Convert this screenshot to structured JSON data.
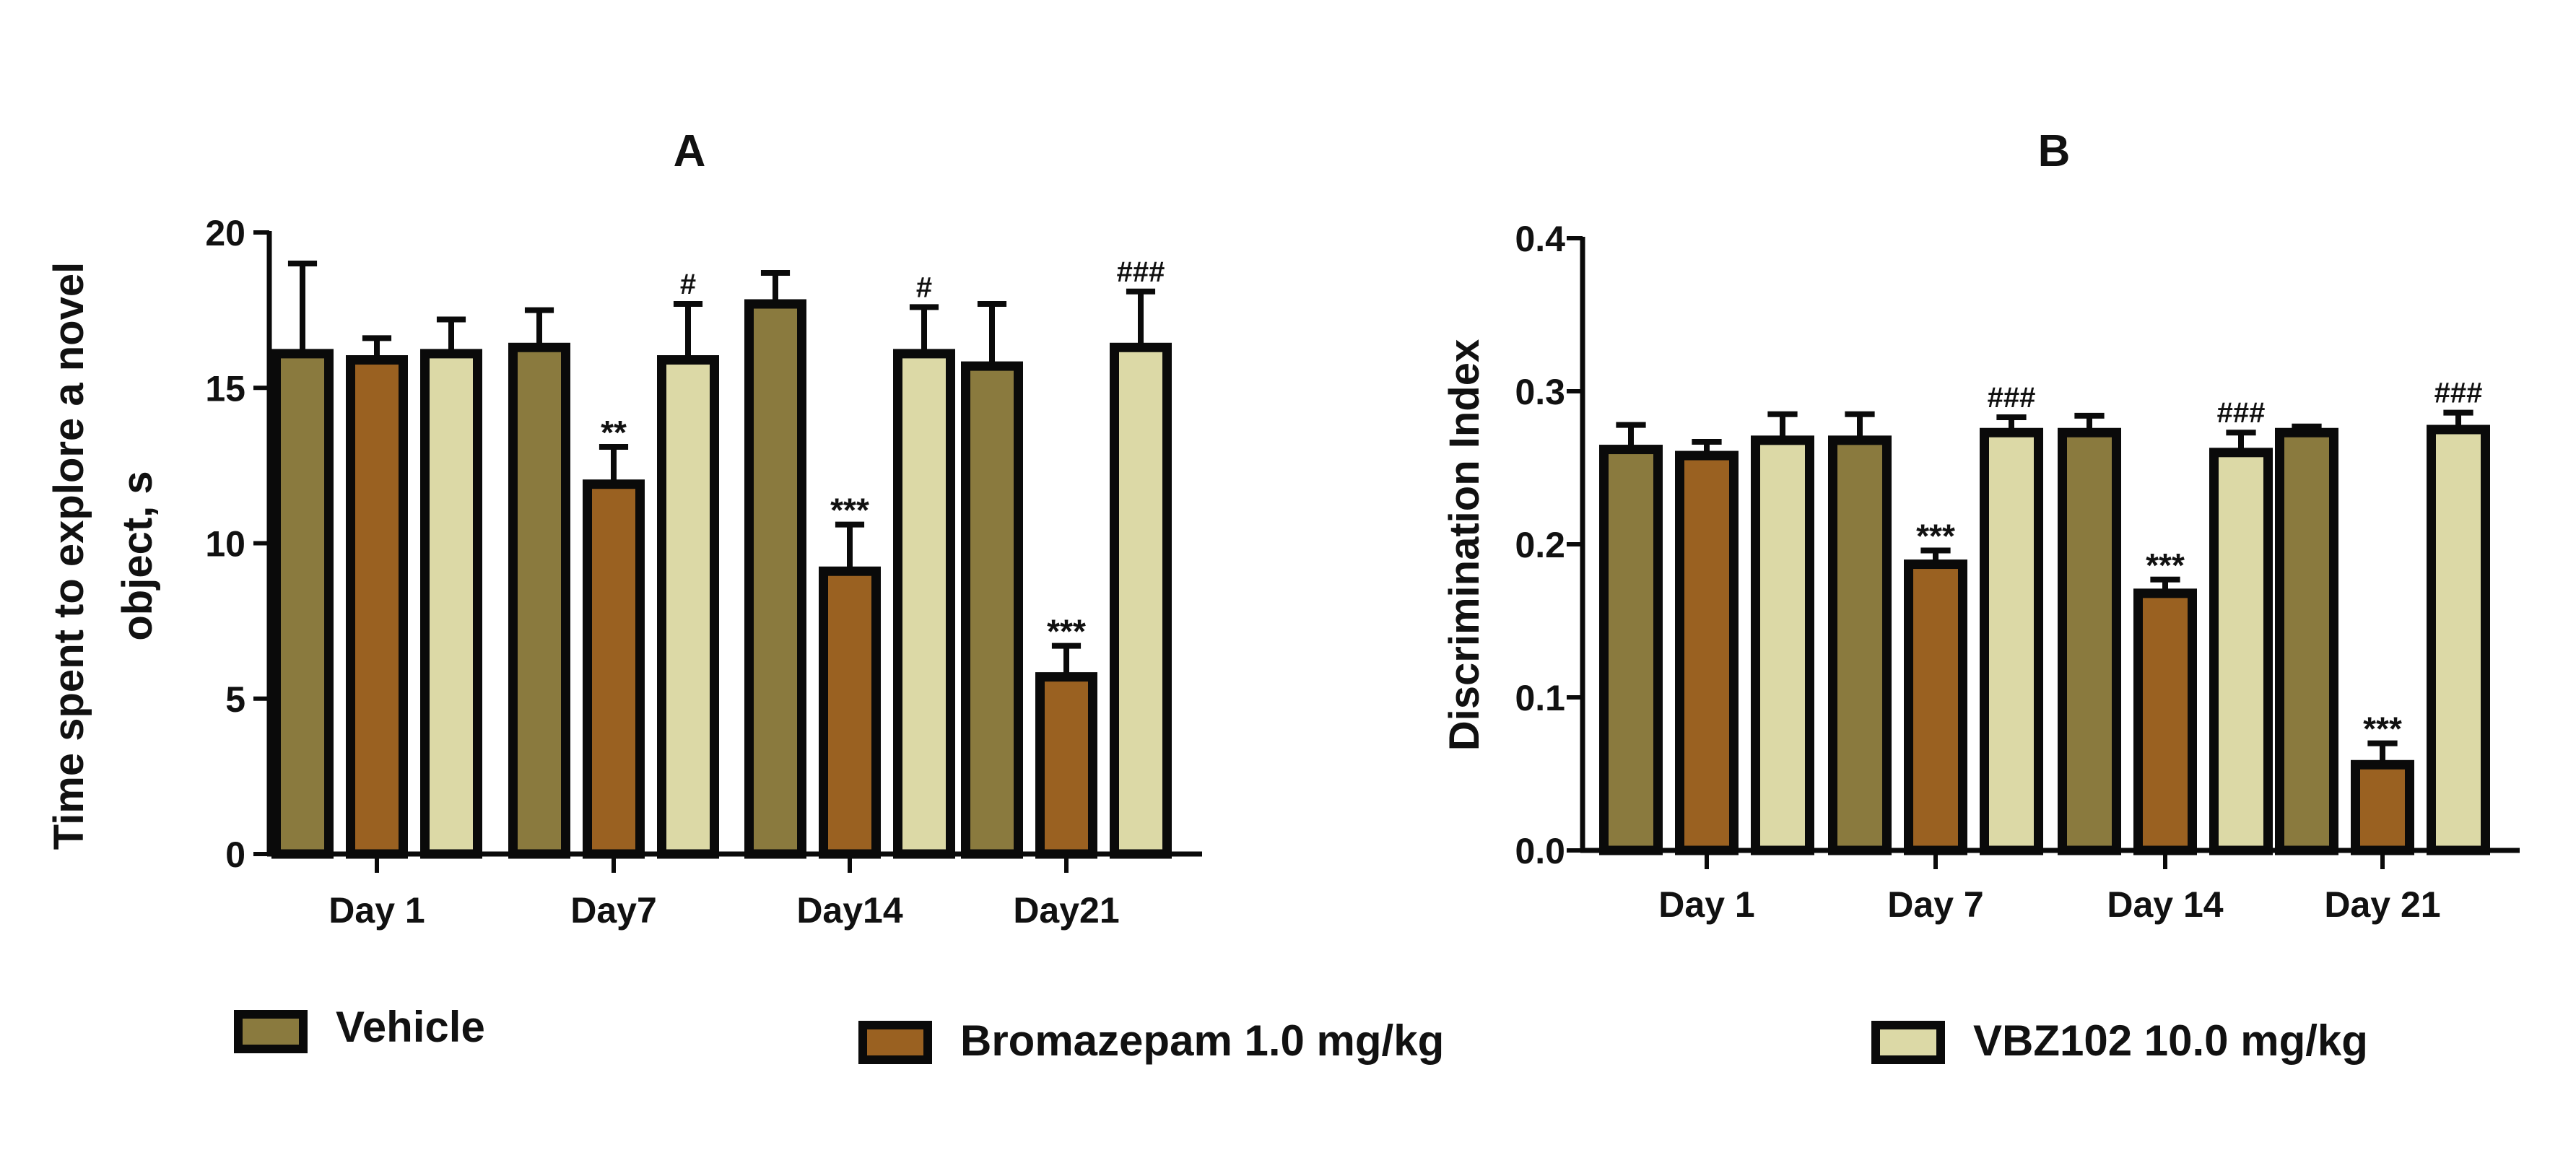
{
  "colors": {
    "vehicle": "#8a7a3e",
    "bromazepam": "#9a6121",
    "vbz102": "#dcd9a6",
    "stroke": "#0a0a0a"
  },
  "legend": [
    {
      "key": "vehicle",
      "label": "Vehicle"
    },
    {
      "key": "bromazepam",
      "label": "Bromazepam 1.0 mg/kg"
    },
    {
      "key": "vbz102",
      "label": "VBZ102 10.0 mg/kg"
    }
  ],
  "chart_data": [
    {
      "type": "bar",
      "title": "A",
      "ylabel_lines": [
        "Time spent to explore a novel",
        "object, s"
      ],
      "xlabel": "",
      "categories": [
        "Day 1",
        "Day7",
        "Day14",
        "Day21"
      ],
      "ylim": [
        0,
        20
      ],
      "yticks": [
        "0",
        "5",
        "10",
        "15",
        "20"
      ],
      "grid": false,
      "series": [
        {
          "name": "Vehicle",
          "key": "vehicle",
          "values": [
            16.1,
            16.3,
            17.7,
            15.7
          ],
          "errors": [
            2.9,
            1.2,
            1.0,
            2.0
          ],
          "annotations": [
            "",
            "",
            "",
            ""
          ]
        },
        {
          "name": "Bromazepam 1.0 mg/kg",
          "key": "bromazepam",
          "values": [
            15.9,
            11.9,
            9.1,
            5.7
          ],
          "errors": [
            0.7,
            1.2,
            1.5,
            1.0
          ],
          "annotations": [
            "",
            "**",
            "***",
            "***"
          ]
        },
        {
          "name": "VBZ102 10.0 mg/kg",
          "key": "vbz102",
          "values": [
            16.1,
            15.9,
            16.1,
            16.3
          ],
          "errors": [
            1.1,
            1.8,
            1.5,
            1.8
          ],
          "annotations": [
            "",
            "#",
            "#",
            "###"
          ]
        }
      ]
    },
    {
      "type": "bar",
      "title": "B",
      "ylabel_lines": [
        "Discrimination Index"
      ],
      "xlabel": "",
      "categories": [
        "Day 1",
        "Day 7",
        "Day 14",
        "Day 21"
      ],
      "ylim": [
        0,
        0.4
      ],
      "yticks": [
        "0.0",
        "0.1",
        "0.2",
        "0.3",
        "0.4"
      ],
      "grid": false,
      "series": [
        {
          "name": "Vehicle",
          "key": "vehicle",
          "values": [
            0.262,
            0.268,
            0.273,
            0.273
          ],
          "errors": [
            0.016,
            0.017,
            0.011,
            0.004
          ],
          "annotations": [
            "",
            "",
            "",
            ""
          ]
        },
        {
          "name": "Bromazepam 1.0 mg/kg",
          "key": "bromazepam",
          "values": [
            0.258,
            0.187,
            0.168,
            0.056
          ],
          "errors": [
            0.009,
            0.009,
            0.009,
            0.014
          ],
          "annotations": [
            "",
            "***",
            "***",
            "***"
          ]
        },
        {
          "name": "VBZ102 10.0 mg/kg",
          "key": "vbz102",
          "values": [
            0.268,
            0.273,
            0.26,
            0.275
          ],
          "errors": [
            0.017,
            0.01,
            0.013,
            0.011
          ],
          "annotations": [
            "",
            "###",
            "###",
            "###"
          ]
        }
      ]
    }
  ]
}
